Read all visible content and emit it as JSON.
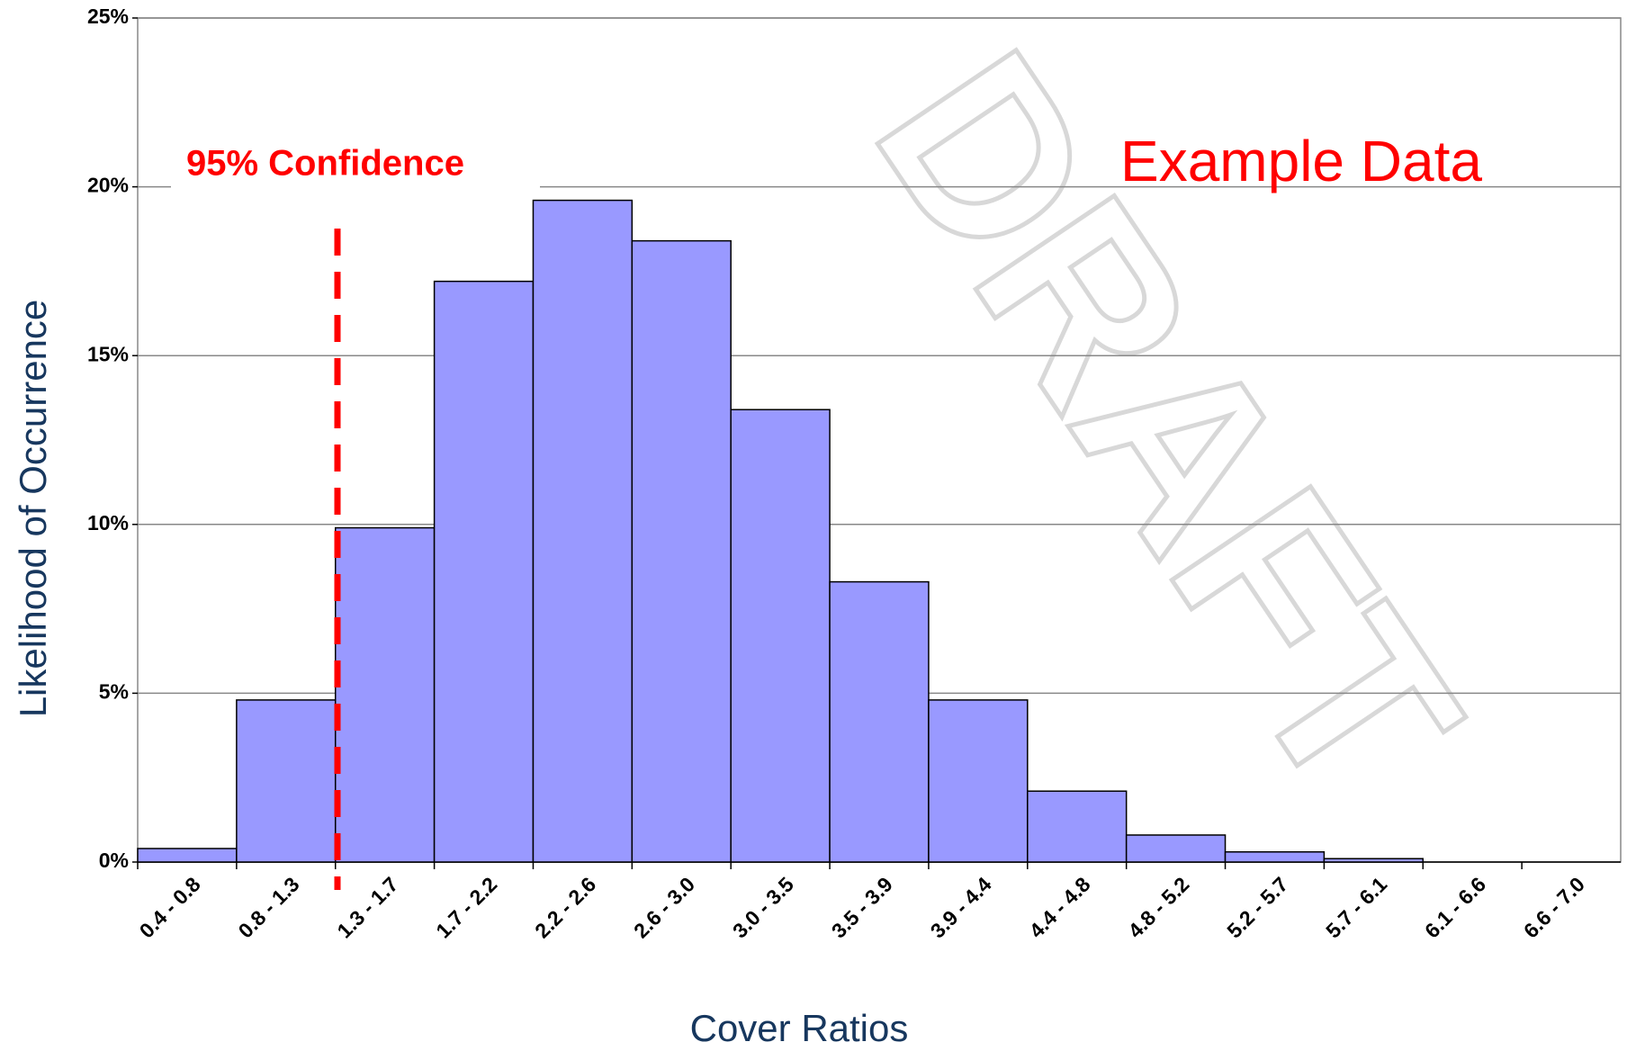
{
  "chart_data": {
    "type": "bar",
    "categories": [
      "0.4 - 0.8",
      "0.8 - 1.3",
      "1.3 - 1.7",
      "1.7 - 2.2",
      "2.2 - 2.6",
      "2.6 - 3.0",
      "3.0 - 3.5",
      "3.5 - 3.9",
      "3.9 - 4.4",
      "4.4 - 4.8",
      "4.8 - 5.2",
      "5.2 - 5.7",
      "5.7 - 6.1",
      "6.1 - 6.6",
      "6.6 - 7.0"
    ],
    "values": [
      0.4,
      4.8,
      9.9,
      17.2,
      19.6,
      18.4,
      13.4,
      8.3,
      4.8,
      2.1,
      0.8,
      0.3,
      0.1,
      0,
      0
    ],
    "color": "#9999ff",
    "ylim": [
      0,
      25
    ],
    "yticks": [
      {
        "value": 0,
        "label": "0%"
      },
      {
        "value": 5,
        "label": "5%"
      },
      {
        "value": 10,
        "label": "10%"
      },
      {
        "value": 15,
        "label": "15%"
      },
      {
        "value": 20,
        "label": "20%"
      },
      {
        "value": 25,
        "label": "25%"
      }
    ],
    "grid": true,
    "y_label": "Likelihood of Occurrence",
    "x_label": "Cover Ratios",
    "annotations": [
      "95% Confidence",
      "Example Data"
    ],
    "watermark": "DRAFT"
  }
}
